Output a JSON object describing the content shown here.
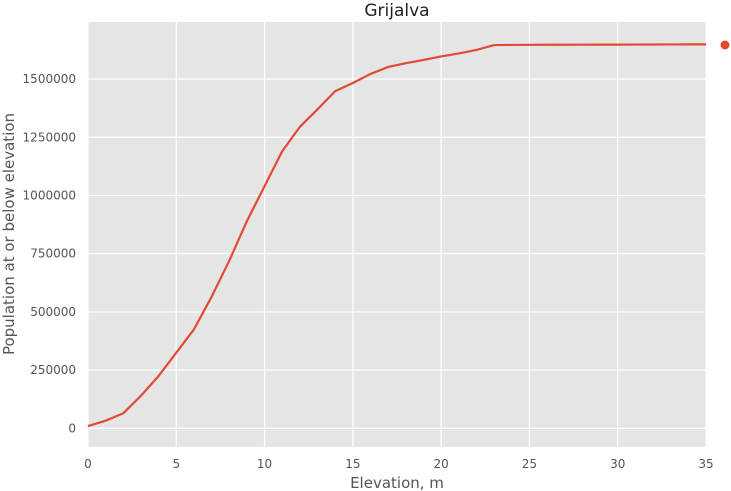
{
  "chart_data": {
    "type": "line",
    "title": "Grijalva",
    "xlabel": "Elevation, m",
    "ylabel": "Population at or below elevation",
    "xlim": [
      0,
      35
    ],
    "ylim": [
      -80000,
      1745000
    ],
    "x_ticks": [
      0,
      5,
      10,
      15,
      20,
      25,
      30,
      35
    ],
    "y_ticks": [
      0,
      250000,
      500000,
      750000,
      1000000,
      1250000,
      1500000
    ],
    "grid": true,
    "legend": "right",
    "colors": {
      "series": "#E24A33",
      "plot_background": "#E5E5E5",
      "grid": "#FFFFFF"
    },
    "series": [
      {
        "x": [
          0,
          1,
          2,
          3,
          4,
          5,
          6,
          7,
          8,
          9,
          10,
          11,
          12,
          13,
          14,
          15,
          16,
          17,
          18,
          19,
          20,
          21,
          22,
          23,
          24,
          25,
          26,
          27,
          28,
          29,
          30,
          31,
          32,
          33,
          34,
          35
        ],
        "values": [
          10000,
          33000,
          65000,
          140000,
          225000,
          325000,
          425000,
          565000,
          720000,
          890000,
          1040000,
          1190000,
          1295000,
          1370000,
          1448000,
          1483000,
          1522000,
          1552000,
          1568000,
          1582000,
          1597000,
          1610000,
          1625000,
          1646000,
          1646500,
          1647000,
          1647200,
          1647400,
          1647600,
          1647800,
          1648000,
          1648200,
          1648400,
          1648600,
          1648800,
          1649000
        ]
      }
    ]
  }
}
